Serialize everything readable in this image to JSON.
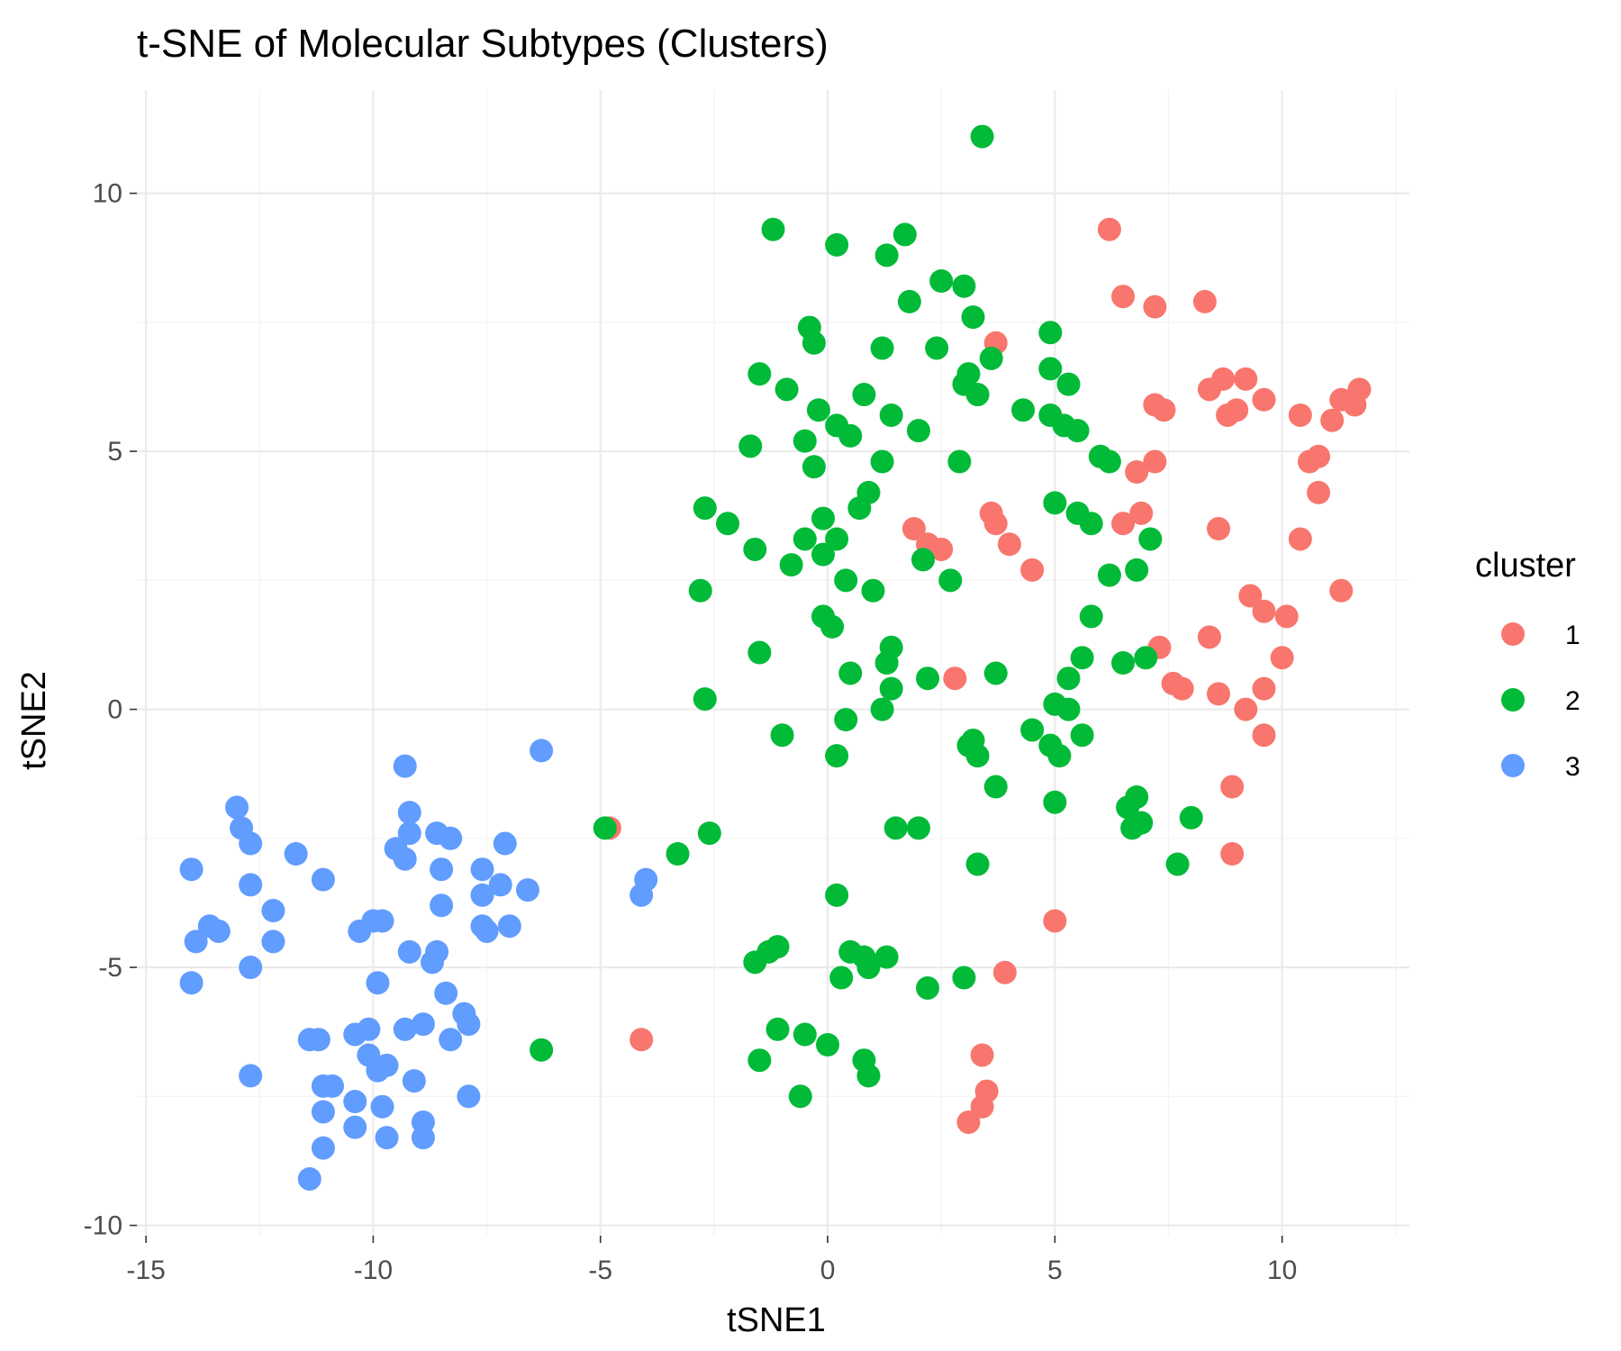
{
  "chart_data": {
    "type": "scatter",
    "title": "t-SNE of Molecular Subtypes (Clusters)",
    "xlabel": "tSNE1",
    "ylabel": "tSNE2",
    "xlim": [
      -15.2,
      12.8
    ],
    "ylim": [
      -10.2,
      12.0
    ],
    "x_ticks": [
      -15,
      -10,
      -5,
      0,
      5,
      10
    ],
    "x_tick_labels": [
      "-15",
      "-10",
      "-5",
      "0",
      "5",
      "10"
    ],
    "y_ticks": [
      -10,
      -5,
      0,
      5,
      10
    ],
    "y_tick_labels": [
      "-10",
      "-5",
      "0",
      "5",
      "10"
    ],
    "grid": true,
    "legend": {
      "title": "cluster",
      "position": "right",
      "entries": [
        "1",
        "2",
        "3"
      ]
    },
    "colors": {
      "1": "#F8766D",
      "2": "#00BA38",
      "3": "#619CFF"
    },
    "series": [
      {
        "name": "1",
        "points": [
          [
            6.2,
            9.3
          ],
          [
            6.5,
            8.0
          ],
          [
            7.2,
            7.8
          ],
          [
            8.3,
            7.9
          ],
          [
            3.7,
            7.1
          ],
          [
            8.7,
            6.4
          ],
          [
            9.2,
            6.4
          ],
          [
            8.4,
            6.2
          ],
          [
            11.7,
            6.2
          ],
          [
            9.6,
            6.0
          ],
          [
            11.3,
            6.0
          ],
          [
            11.6,
            5.9
          ],
          [
            7.2,
            5.9
          ],
          [
            7.4,
            5.8
          ],
          [
            9.0,
            5.8
          ],
          [
            8.8,
            5.7
          ],
          [
            10.4,
            5.7
          ],
          [
            11.1,
            5.6
          ],
          [
            10.8,
            4.9
          ],
          [
            10.6,
            4.8
          ],
          [
            7.2,
            4.8
          ],
          [
            6.8,
            4.6
          ],
          [
            10.8,
            4.2
          ],
          [
            6.9,
            3.8
          ],
          [
            3.6,
            3.8
          ],
          [
            3.7,
            3.6
          ],
          [
            6.5,
            3.6
          ],
          [
            8.6,
            3.5
          ],
          [
            1.9,
            3.5
          ],
          [
            10.4,
            3.3
          ],
          [
            4.0,
            3.2
          ],
          [
            2.2,
            3.2
          ],
          [
            2.5,
            3.1
          ],
          [
            4.5,
            2.7
          ],
          [
            11.3,
            2.3
          ],
          [
            9.3,
            2.2
          ],
          [
            9.6,
            1.9
          ],
          [
            10.1,
            1.8
          ],
          [
            8.4,
            1.4
          ],
          [
            7.3,
            1.2
          ],
          [
            10.0,
            1.0
          ],
          [
            7.6,
            0.5
          ],
          [
            7.8,
            0.4
          ],
          [
            9.6,
            0.4
          ],
          [
            2.8,
            0.6
          ],
          [
            8.6,
            0.3
          ],
          [
            9.2,
            0.0
          ],
          [
            9.6,
            -0.5
          ],
          [
            8.9,
            -1.5
          ],
          [
            8.9,
            -2.8
          ],
          [
            -4.8,
            -2.3
          ],
          [
            5.0,
            -4.1
          ],
          [
            3.9,
            -5.1
          ],
          [
            -4.1,
            -6.4
          ],
          [
            3.4,
            -6.7
          ],
          [
            3.5,
            -7.4
          ],
          [
            3.4,
            -7.7
          ],
          [
            3.1,
            -8.0
          ]
        ]
      },
      {
        "name": "2",
        "points": [
          [
            3.4,
            11.1
          ],
          [
            -1.2,
            9.3
          ],
          [
            1.7,
            9.2
          ],
          [
            0.2,
            9.0
          ],
          [
            1.3,
            8.8
          ],
          [
            2.5,
            8.3
          ],
          [
            3.0,
            8.2
          ],
          [
            1.8,
            7.9
          ],
          [
            3.2,
            7.6
          ],
          [
            -0.4,
            7.4
          ],
          [
            4.9,
            7.3
          ],
          [
            -0.3,
            7.1
          ],
          [
            1.2,
            7.0
          ],
          [
            2.4,
            7.0
          ],
          [
            3.6,
            6.8
          ],
          [
            4.9,
            6.6
          ],
          [
            -1.5,
            6.5
          ],
          [
            3.1,
            6.5
          ],
          [
            5.3,
            6.3
          ],
          [
            3.0,
            6.3
          ],
          [
            -0.9,
            6.2
          ],
          [
            0.8,
            6.1
          ],
          [
            3.3,
            6.1
          ],
          [
            4.3,
            5.8
          ],
          [
            -0.2,
            5.8
          ],
          [
            4.9,
            5.7
          ],
          [
            1.4,
            5.7
          ],
          [
            5.2,
            5.5
          ],
          [
            0.2,
            5.5
          ],
          [
            5.5,
            5.4
          ],
          [
            2.0,
            5.4
          ],
          [
            0.5,
            5.3
          ],
          [
            -0.5,
            5.2
          ],
          [
            -1.7,
            5.1
          ],
          [
            6.0,
            4.9
          ],
          [
            6.2,
            4.8
          ],
          [
            1.2,
            4.8
          ],
          [
            2.9,
            4.8
          ],
          [
            -0.3,
            4.7
          ],
          [
            0.9,
            4.2
          ],
          [
            5.0,
            4.0
          ],
          [
            -2.7,
            3.9
          ],
          [
            5.5,
            3.8
          ],
          [
            0.7,
            3.9
          ],
          [
            -2.2,
            3.6
          ],
          [
            5.8,
            3.6
          ],
          [
            -0.1,
            3.7
          ],
          [
            -0.5,
            3.3
          ],
          [
            0.2,
            3.3
          ],
          [
            7.1,
            3.3
          ],
          [
            -1.6,
            3.1
          ],
          [
            -0.1,
            3.0
          ],
          [
            -0.8,
            2.8
          ],
          [
            2.1,
            2.9
          ],
          [
            6.2,
            2.6
          ],
          [
            6.8,
            2.7
          ],
          [
            2.7,
            2.5
          ],
          [
            0.4,
            2.5
          ],
          [
            1.0,
            2.3
          ],
          [
            -2.8,
            2.3
          ],
          [
            5.8,
            1.8
          ],
          [
            -0.1,
            1.8
          ],
          [
            0.1,
            1.6
          ],
          [
            1.4,
            1.2
          ],
          [
            -1.5,
            1.1
          ],
          [
            5.6,
            1.0
          ],
          [
            7.0,
            1.0
          ],
          [
            6.5,
            0.9
          ],
          [
            1.3,
            0.9
          ],
          [
            0.5,
            0.7
          ],
          [
            3.7,
            0.7
          ],
          [
            2.2,
            0.6
          ],
          [
            5.3,
            0.6
          ],
          [
            1.4,
            0.4
          ],
          [
            -2.7,
            0.2
          ],
          [
            5.0,
            0.1
          ],
          [
            1.2,
            0.0
          ],
          [
            5.3,
            0.0
          ],
          [
            0.4,
            -0.2
          ],
          [
            4.5,
            -0.4
          ],
          [
            -1.0,
            -0.5
          ],
          [
            5.6,
            -0.5
          ],
          [
            3.2,
            -0.6
          ],
          [
            3.1,
            -0.7
          ],
          [
            4.9,
            -0.7
          ],
          [
            3.3,
            -0.9
          ],
          [
            5.1,
            -0.9
          ],
          [
            0.2,
            -0.9
          ],
          [
            3.7,
            -1.5
          ],
          [
            6.8,
            -1.7
          ],
          [
            5.0,
            -1.8
          ],
          [
            6.6,
            -1.9
          ],
          [
            8.0,
            -2.1
          ],
          [
            6.9,
            -2.2
          ],
          [
            6.7,
            -2.3
          ],
          [
            -4.9,
            -2.3
          ],
          [
            1.5,
            -2.3
          ],
          [
            2.0,
            -2.3
          ],
          [
            -2.6,
            -2.4
          ],
          [
            -3.3,
            -2.8
          ],
          [
            3.3,
            -3.0
          ],
          [
            7.7,
            -3.0
          ],
          [
            0.2,
            -3.6
          ],
          [
            -1.1,
            -4.6
          ],
          [
            -1.3,
            -4.7
          ],
          [
            0.5,
            -4.7
          ],
          [
            1.3,
            -4.8
          ],
          [
            0.8,
            -4.8
          ],
          [
            -1.6,
            -4.9
          ],
          [
            0.9,
            -5.0
          ],
          [
            0.3,
            -5.2
          ],
          [
            3.0,
            -5.2
          ],
          [
            2.2,
            -5.4
          ],
          [
            -1.1,
            -6.2
          ],
          [
            -0.5,
            -6.3
          ],
          [
            0.0,
            -6.5
          ],
          [
            -6.3,
            -6.6
          ],
          [
            -1.5,
            -6.8
          ],
          [
            0.8,
            -6.8
          ],
          [
            0.9,
            -7.1
          ],
          [
            -0.6,
            -7.5
          ]
        ]
      },
      {
        "name": "3",
        "points": [
          [
            -6.3,
            -0.8
          ],
          [
            -9.3,
            -1.1
          ],
          [
            -13.0,
            -1.9
          ],
          [
            -9.2,
            -2.0
          ],
          [
            -12.9,
            -2.3
          ],
          [
            -9.2,
            -2.4
          ],
          [
            -8.6,
            -2.4
          ],
          [
            -8.3,
            -2.5
          ],
          [
            -7.1,
            -2.6
          ],
          [
            -12.7,
            -2.6
          ],
          [
            -9.5,
            -2.7
          ],
          [
            -11.7,
            -2.8
          ],
          [
            -9.3,
            -2.9
          ],
          [
            -14.0,
            -3.1
          ],
          [
            -8.5,
            -3.1
          ],
          [
            -7.6,
            -3.1
          ],
          [
            -11.1,
            -3.3
          ],
          [
            -4.0,
            -3.3
          ],
          [
            -7.2,
            -3.4
          ],
          [
            -12.7,
            -3.4
          ],
          [
            -6.6,
            -3.5
          ],
          [
            -7.6,
            -3.6
          ],
          [
            -4.1,
            -3.6
          ],
          [
            -8.5,
            -3.8
          ],
          [
            -12.2,
            -3.9
          ],
          [
            -10.0,
            -4.1
          ],
          [
            -9.8,
            -4.1
          ],
          [
            -13.6,
            -4.2
          ],
          [
            -7.6,
            -4.2
          ],
          [
            -7.0,
            -4.2
          ],
          [
            -10.3,
            -4.3
          ],
          [
            -7.5,
            -4.3
          ],
          [
            -13.4,
            -4.3
          ],
          [
            -13.9,
            -4.5
          ],
          [
            -12.2,
            -4.5
          ],
          [
            -8.6,
            -4.7
          ],
          [
            -9.2,
            -4.7
          ],
          [
            -8.7,
            -4.9
          ],
          [
            -12.7,
            -5.0
          ],
          [
            -14.0,
            -5.3
          ],
          [
            -9.9,
            -5.3
          ],
          [
            -8.4,
            -5.5
          ],
          [
            -8.0,
            -5.9
          ],
          [
            -7.9,
            -6.1
          ],
          [
            -8.9,
            -6.1
          ],
          [
            -9.3,
            -6.2
          ],
          [
            -10.1,
            -6.2
          ],
          [
            -10.4,
            -6.3
          ],
          [
            -8.3,
            -6.4
          ],
          [
            -11.4,
            -6.4
          ],
          [
            -11.2,
            -6.4
          ],
          [
            -10.1,
            -6.7
          ],
          [
            -9.7,
            -6.9
          ],
          [
            -9.9,
            -7.0
          ],
          [
            -12.7,
            -7.1
          ],
          [
            -9.1,
            -7.2
          ],
          [
            -10.9,
            -7.3
          ],
          [
            -11.1,
            -7.3
          ],
          [
            -7.9,
            -7.5
          ],
          [
            -10.4,
            -7.6
          ],
          [
            -9.8,
            -7.7
          ],
          [
            -11.1,
            -7.8
          ],
          [
            -8.9,
            -8.0
          ],
          [
            -10.4,
            -8.1
          ],
          [
            -9.7,
            -8.3
          ],
          [
            -8.9,
            -8.3
          ],
          [
            -11.1,
            -8.5
          ],
          [
            -11.4,
            -9.1
          ]
        ]
      }
    ]
  }
}
